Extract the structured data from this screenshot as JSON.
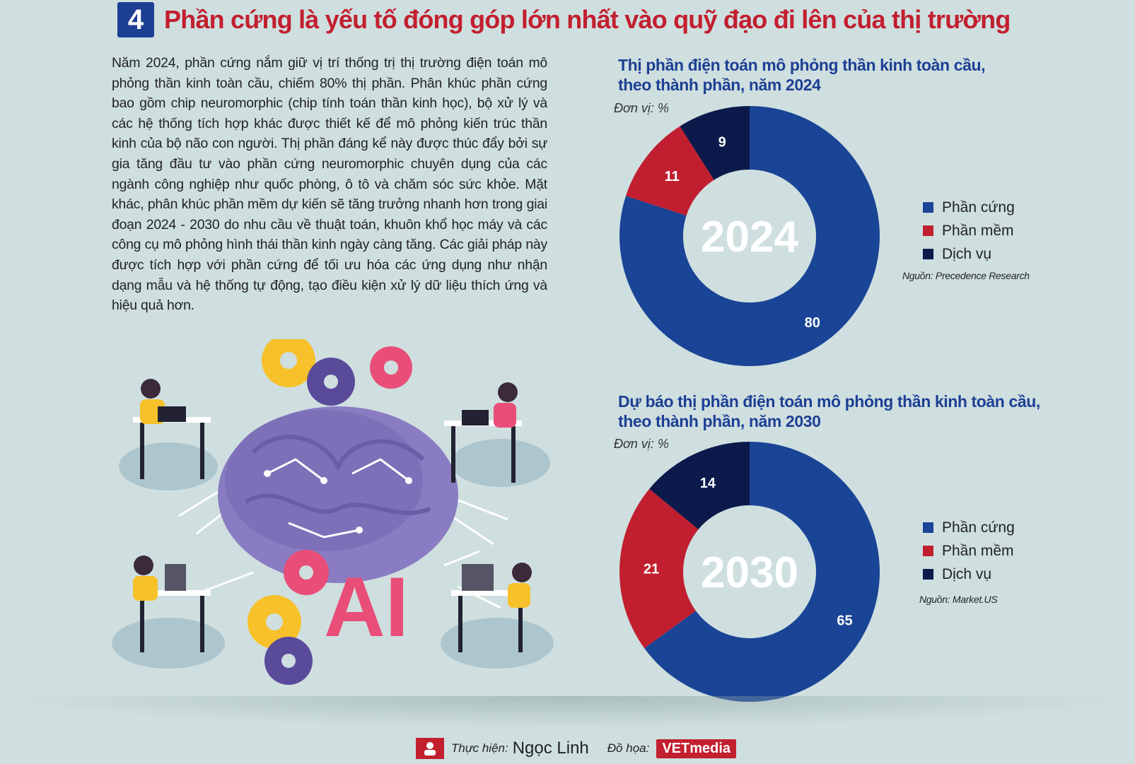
{
  "header": {
    "number": "4",
    "title": "Phần cứng là yếu tố đóng góp lớn nhất vào quỹ đạo đi lên của thị trường"
  },
  "body_text": "Năm 2024, phần cứng nắm giữ vị trí thống trị thị trường điện toán mô phỏng thần kinh toàn cầu, chiếm 80% thị phần. Phân khúc phần cứng bao gồm chip neuromorphic (chip tính toán thần kinh học), bộ xử lý và các hệ thống tích hợp khác được thiết kế để mô phỏng kiến trúc thần kinh của bộ não con người. Thị phần đáng kể này được thúc đẩy bởi sự gia tăng đầu tư vào phần cứng neuromorphic chuyên dụng của các ngành công nghiệp như quốc phòng, ô tô và chăm sóc sức khỏe. Mặt khác, phân khúc phần mềm dự kiến sẽ tăng trưởng nhanh hơn trong giai đoạn 2024 - 2030 do nhu cầu về thuật toán, khuôn khổ học máy và các công cụ mô phỏng hình thái thần kinh ngày càng tăng. Các giải pháp này được tích hợp với phần cứng để tối ưu hóa các ứng dụng như nhận dạng mẫu và hệ thống tự động, tạo điều kiện xử lý dữ liệu thích ứng và hiệu quả hơn.",
  "illustration": {
    "ai_label": "AI"
  },
  "colors": {
    "hardware": "#1a4496",
    "software": "#c11f2f",
    "service": "#0b1a4a"
  },
  "chart_data": [
    {
      "type": "pie",
      "title": "Thị phần điện toán mô phỏng thần kinh toàn cầu, theo thành phần, năm 2024",
      "title_line1": "Thị phần điện toán mô phỏng thần kinh toàn cầu,",
      "title_line2": "theo thành phần, năm 2024",
      "unit": "Đơn vị: %",
      "center_label": "2024",
      "categories": [
        "Phần cứng",
        "Phần mềm",
        "Dịch vụ"
      ],
      "values": [
        80,
        11,
        9
      ],
      "colors": [
        "#1a4496",
        "#c11f2f",
        "#0b1a4a"
      ],
      "legend": [
        "Phần cứng",
        "Phần mềm",
        "Dịch vụ"
      ],
      "legend_position": "right",
      "source": "Nguồn: Precedence Research"
    },
    {
      "type": "pie",
      "title": "Dự báo thị phần điện toán mô phỏng thần kinh toàn cầu, theo thành phần, năm 2030",
      "title_line1": "Dự báo thị phần điện toán mô phỏng thần kinh toàn cầu,",
      "title_line2": "theo thành phần, năm 2030",
      "unit": "Đơn vị: %",
      "center_label": "2030",
      "categories": [
        "Phần cứng",
        "Phần mềm",
        "Dịch vụ"
      ],
      "values": [
        65,
        21,
        14
      ],
      "colors": [
        "#1a4496",
        "#c11f2f",
        "#0b1a4a"
      ],
      "legend": [
        "Phần cứng",
        "Phần mềm",
        "Dịch vụ"
      ],
      "legend_position": "right",
      "source": "Nguồn: Market.US"
    }
  ],
  "footer": {
    "made_by_label": "Thực hiện:",
    "made_by": "Ngọc Linh",
    "graphics_label": "Đồ họa:",
    "graphics_by": "VETmedia"
  }
}
